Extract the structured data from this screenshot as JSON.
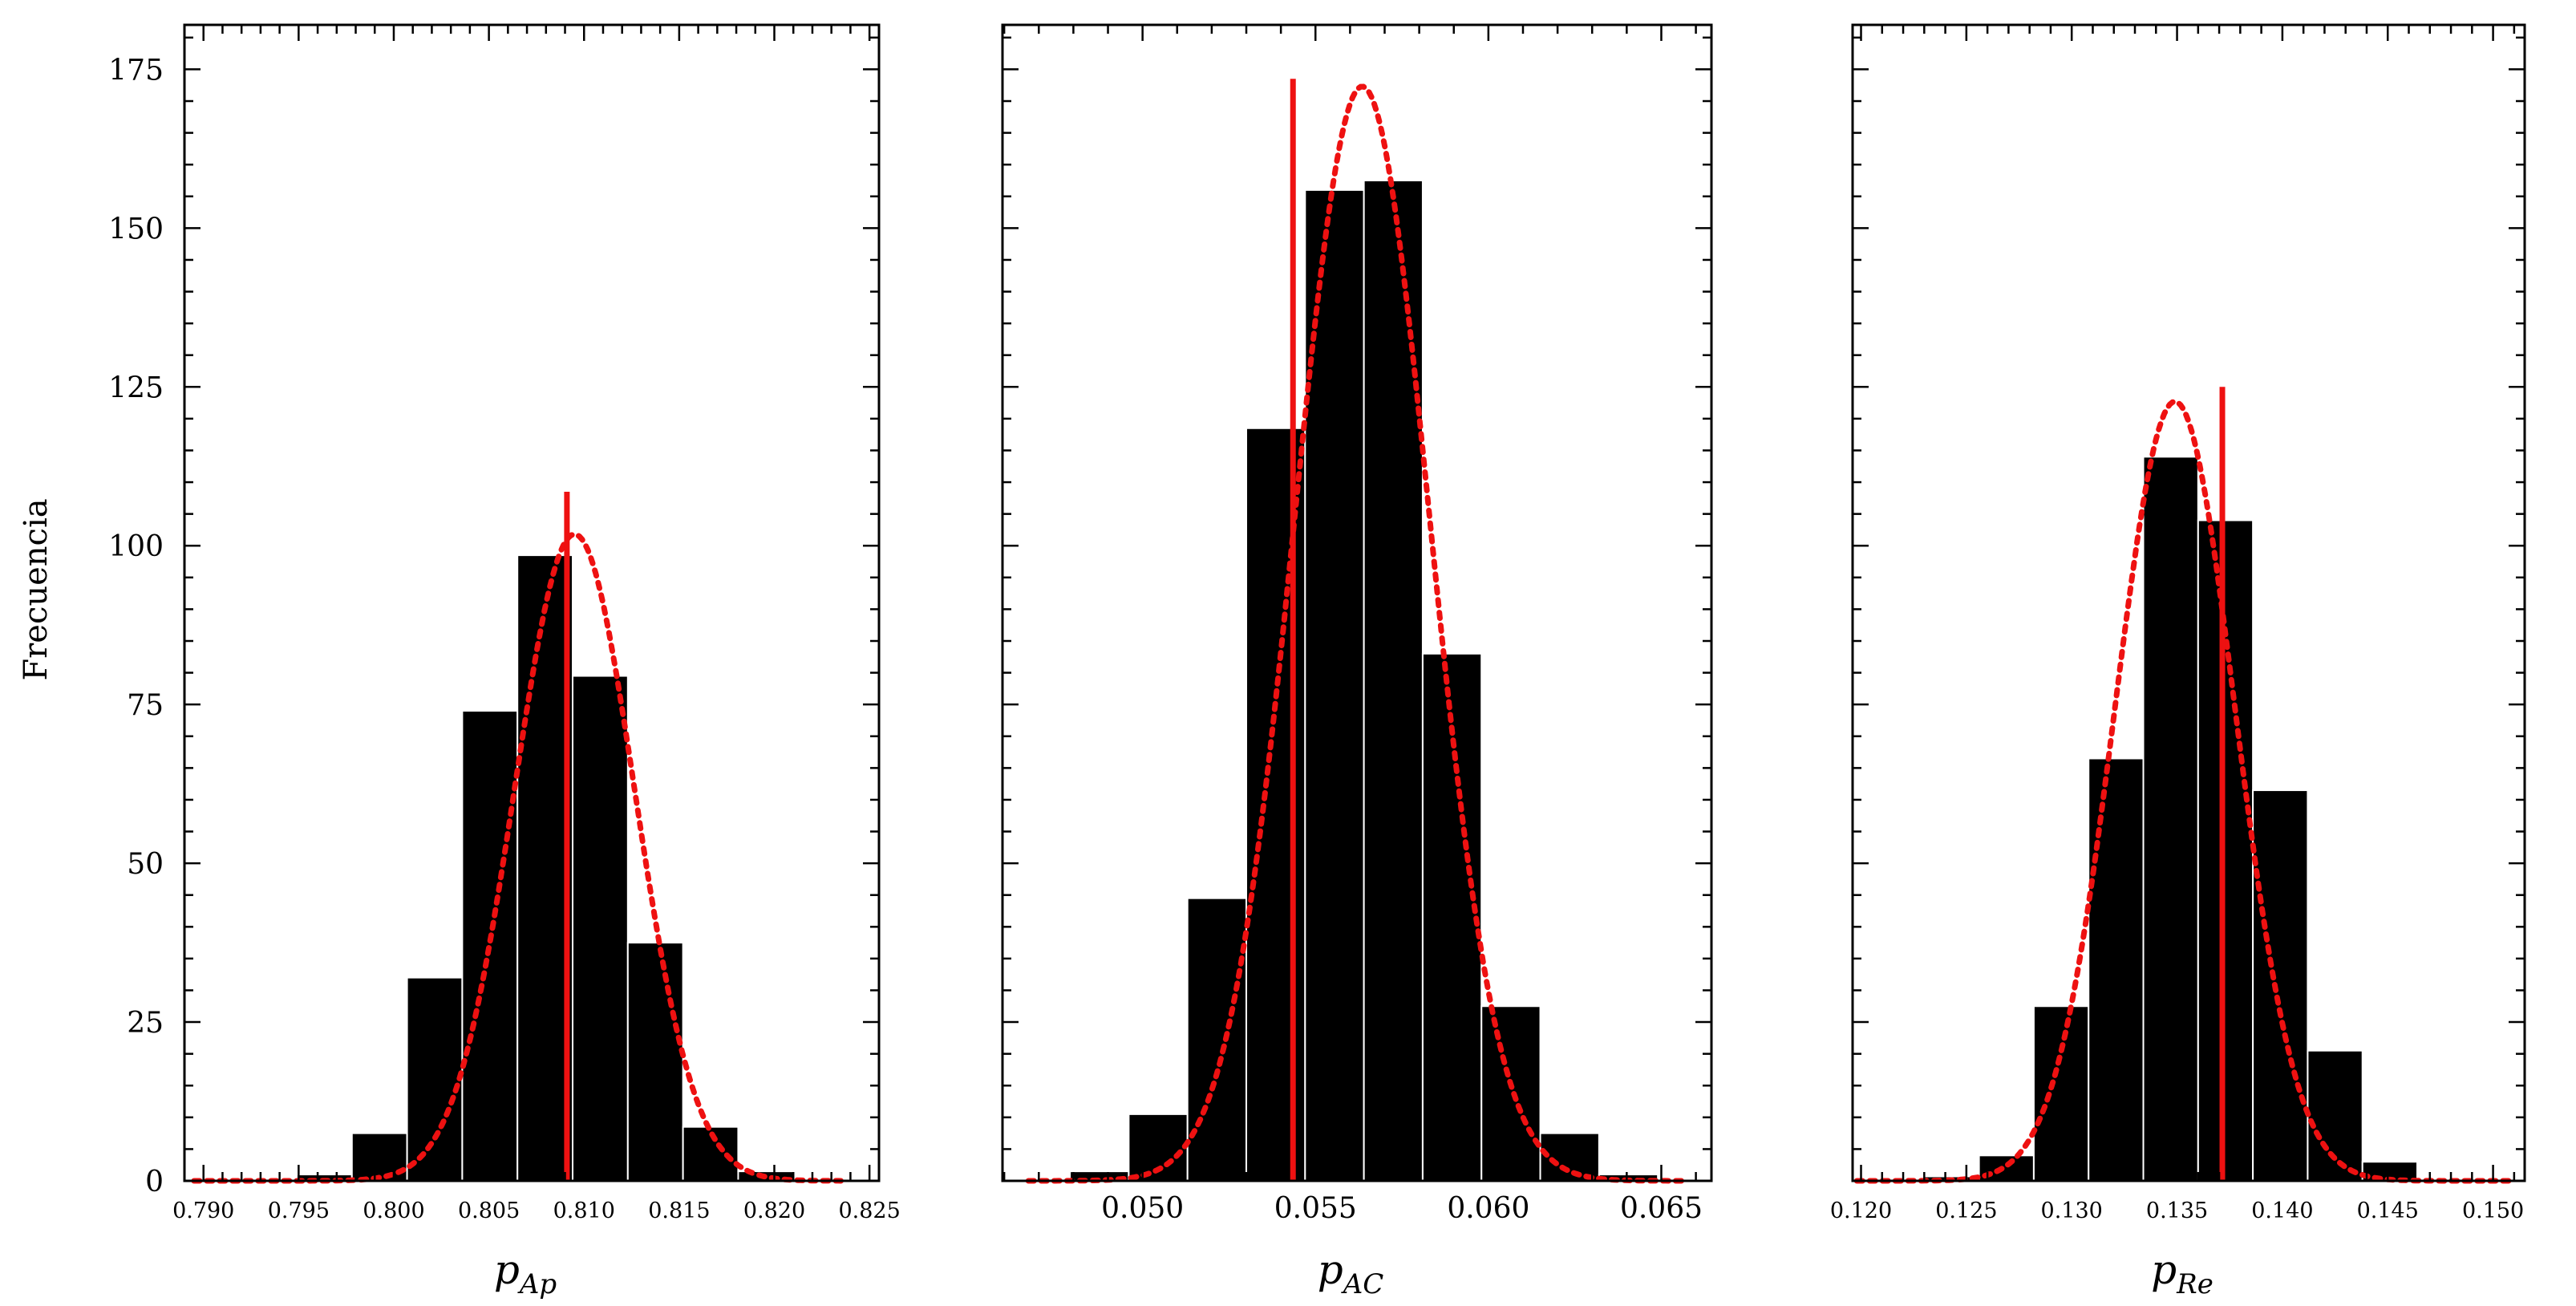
{
  "chart_data": {
    "type": "bar",
    "ylabel": "Frecuencia",
    "ylim": [
      0,
      182
    ],
    "yticks": [
      0,
      25,
      50,
      75,
      100,
      125,
      150,
      175
    ],
    "colors": {
      "bars": "#000000",
      "fit": "#ee1111",
      "marker": "#ee1111"
    },
    "panels": [
      {
        "xlabel_main": "p",
        "xlabel_sub": "Ap",
        "xlim": [
          0.789,
          0.8255
        ],
        "xticks": [
          0.79,
          0.795,
          0.8,
          0.805,
          0.81,
          0.815,
          0.82,
          0.825
        ],
        "xtick_labels": [
          "0.790",
          "0.795",
          "0.800",
          "0.805",
          "0.810",
          "0.815",
          "0.820",
          "0.825"
        ],
        "bin_edges": [
          0.792,
          0.7949,
          0.7978,
          0.8007,
          0.8036,
          0.8065,
          0.8094,
          0.8123,
          0.8152,
          0.8181,
          0.821
        ],
        "values": [
          0.3,
          1,
          7.5,
          32,
          74,
          98.5,
          79.5,
          37.5,
          8.5,
          1.5
        ],
        "fit": {
          "mean": 0.8095,
          "sigma": 0.00315,
          "peak": 101.8,
          "range": [
            0.7895,
            0.8235
          ]
        },
        "marker": {
          "x": 0.8091,
          "top": 108.5
        }
      },
      {
        "xlabel_main": "p",
        "xlabel_sub": "AC",
        "xlim": [
          0.04595,
          0.06645
        ],
        "xticks": [
          0.05,
          0.055,
          0.06,
          0.065
        ],
        "xtick_labels": [
          "0.050",
          "0.055",
          "0.060",
          "0.065"
        ],
        "bin_edges": [
          0.0479,
          0.0496,
          0.0513,
          0.053,
          0.0547,
          0.0564,
          0.0581,
          0.0598,
          0.0615,
          0.0632,
          0.0649
        ],
        "values": [
          1.5,
          10.5,
          44.5,
          118.5,
          156,
          157.5,
          83,
          27.5,
          7.5,
          1
        ],
        "fit": {
          "mean": 0.05635,
          "sigma": 0.00195,
          "peak": 172.3,
          "range": [
            0.0467,
            0.0656
          ]
        },
        "marker": {
          "x": 0.05435,
          "top": 173.5
        }
      },
      {
        "xlabel_main": "p",
        "xlabel_sub": "Re",
        "xlim": [
          0.1196,
          0.1515
        ],
        "xticks": [
          0.12,
          0.125,
          0.13,
          0.135,
          0.14,
          0.145,
          0.15
        ],
        "xtick_labels": [
          "0.120",
          "0.125",
          "0.130",
          "0.135",
          "0.140",
          "0.145",
          "0.150"
        ],
        "bin_edges": [
          0.123,
          0.1256,
          0.1282,
          0.1308,
          0.1334,
          0.136,
          0.1386,
          0.1412,
          0.1438,
          0.1464
        ],
        "values": [
          0.7,
          4,
          27.5,
          66.5,
          114,
          104,
          61.5,
          20.5,
          3
        ],
        "fit": {
          "mean": 0.1349,
          "sigma": 0.00285,
          "peak": 122.7,
          "range": [
            0.1198,
            0.1508
          ]
        },
        "marker": {
          "x": 0.13715,
          "top": 125
        }
      }
    ]
  }
}
